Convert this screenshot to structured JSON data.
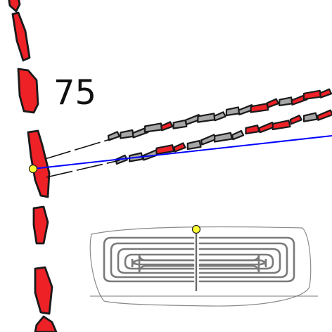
{
  "stone_label": "75",
  "colors": {
    "stone_red": "#ee2127",
    "stone_grey": "#a6a6a6",
    "outline": "#1a1a1a",
    "sight_line": "#0000ff",
    "marker": "#ffff33",
    "slab_line": "#8a8a8a"
  },
  "icons": [
    "survey-point-marker",
    "carved-slab-marker"
  ]
}
